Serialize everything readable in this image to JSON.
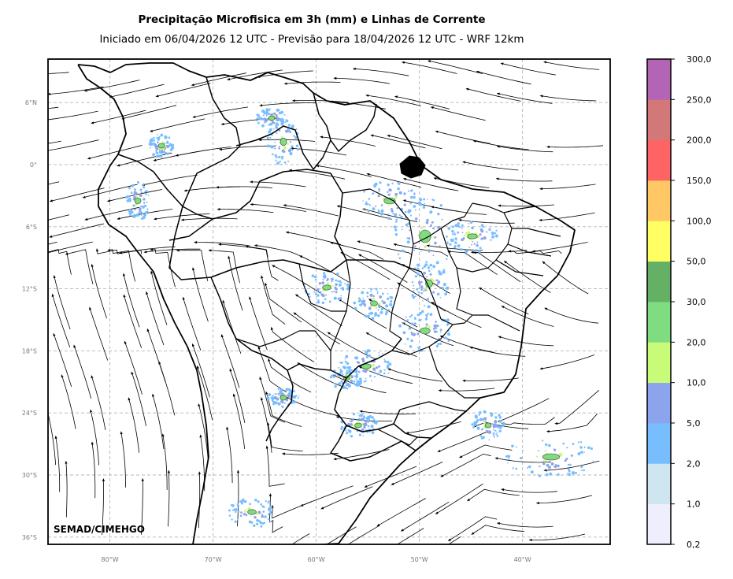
{
  "header": {
    "title": "Precipitação Microfisica em 3h (mm) e Linhas de Corrente",
    "subtitle": "Iniciado em 06/04/2026 12 UTC - Previsão para 18/04/2026 12 UTC - WRF 12km"
  },
  "map": {
    "lon_range": [
      -86,
      -31.5
    ],
    "lat_range": [
      -36.7,
      10.2
    ],
    "lon_ticks": [
      {
        "value": -80,
        "label": "80°W"
      },
      {
        "value": -70,
        "label": "70°W"
      },
      {
        "value": -60,
        "label": "60°W"
      },
      {
        "value": -50,
        "label": "50°W"
      },
      {
        "value": -40,
        "label": "40°W"
      }
    ],
    "lat_ticks": [
      {
        "value": 6,
        "label": "6°N"
      },
      {
        "value": 0,
        "label": "0°"
      },
      {
        "value": -6,
        "label": "6°S"
      },
      {
        "value": -12,
        "label": "12°S"
      },
      {
        "value": -18,
        "label": "18°S"
      },
      {
        "value": -24,
        "label": "24°S"
      },
      {
        "value": -30,
        "label": "30°S"
      },
      {
        "value": -36,
        "label": "36°S"
      }
    ],
    "credit": "SEMAD/CIMEHGO",
    "grid": true
  },
  "colorbar": {
    "units": "mm",
    "boundaries": [
      "0,2",
      "1,0",
      "2,0",
      "5,0",
      "10,0",
      "20,0",
      "30,0",
      "50,0",
      "100,0",
      "150,0",
      "200,0",
      "250,0",
      "300,0"
    ],
    "colors": [
      "#eeeefc",
      "#cfe6f0",
      "#78beff",
      "#8ca4ec",
      "#c8fc78",
      "#80dc80",
      "#64b064",
      "#ffff64",
      "#ffc864",
      "#ff6464",
      "#d27878",
      "#b464b4"
    ]
  }
}
